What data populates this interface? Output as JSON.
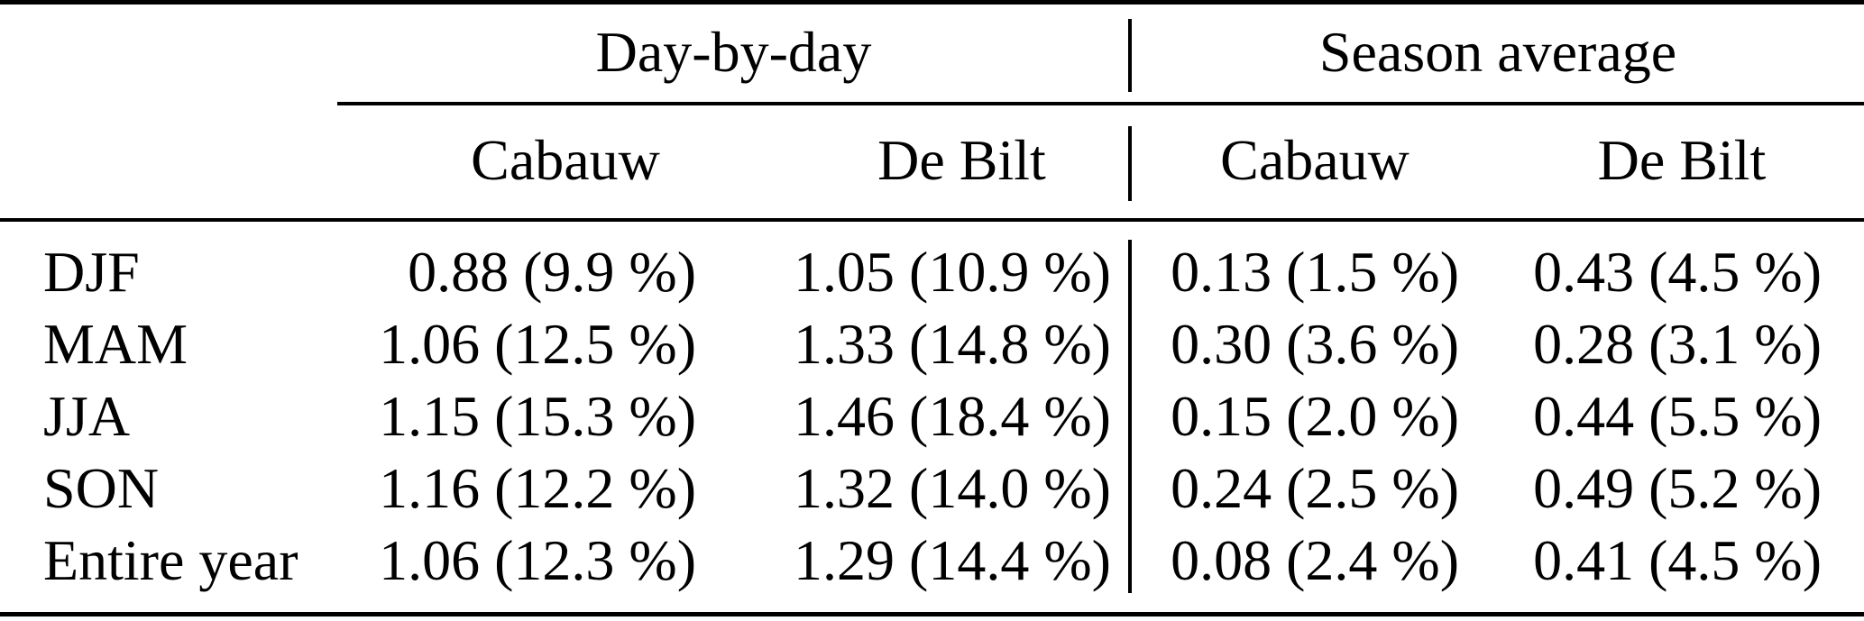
{
  "table": {
    "column_groups": {
      "day_by_day": "Day-by-day",
      "season_average": "Season average"
    },
    "sub_headers": {
      "day_cabauw": "Cabauw",
      "day_debilt": "De Bilt",
      "season_cabauw": "Cabauw",
      "season_debilt": "De Bilt"
    },
    "rows": [
      {
        "label": "DJF",
        "day_cabauw": "0.88 (9.9 %)",
        "day_debilt": "1.05 (10.9 %)",
        "season_cabauw": "0.13 (1.5 %)",
        "season_debilt": "0.43 (4.5 %)"
      },
      {
        "label": "MAM",
        "day_cabauw": "1.06 (12.5 %)",
        "day_debilt": "1.33 (14.8 %)",
        "season_cabauw": "0.30 (3.6 %)",
        "season_debilt": "0.28 (3.1 %)"
      },
      {
        "label": "JJA",
        "day_cabauw": "1.15 (15.3 %)",
        "day_debilt": "1.46 (18.4 %)",
        "season_cabauw": "0.15 (2.0 %)",
        "season_debilt": "0.44 (5.5 %)"
      },
      {
        "label": "SON",
        "day_cabauw": "1.16 (12.2 %)",
        "day_debilt": "1.32 (14.0 %)",
        "season_cabauw": "0.24 (2.5 %)",
        "season_debilt": "0.49 (5.2 %)"
      },
      {
        "label": "Entire year",
        "day_cabauw": "1.06 (12.3 %)",
        "day_debilt": "1.29 (14.4 %)",
        "season_cabauw": "0.08 (2.4 %)",
        "season_debilt": "0.41 (4.5 %)"
      }
    ],
    "colors": {
      "background": "#ffffff",
      "text": "#000000",
      "rule": "#000000"
    }
  },
  "chart_data": {
    "type": "table",
    "title": "",
    "column_group_headers": [
      "Day-by-day",
      "Season average"
    ],
    "columns": [
      "",
      "Day-by-day Cabauw",
      "Day-by-day De Bilt",
      "Season average Cabauw",
      "Season average De Bilt"
    ],
    "rows": [
      [
        "DJF",
        "0.88 (9.9 %)",
        "1.05 (10.9 %)",
        "0.13 (1.5 %)",
        "0.43 (4.5 %)"
      ],
      [
        "MAM",
        "1.06 (12.5 %)",
        "1.33 (14.8 %)",
        "0.30 (3.6 %)",
        "0.28 (3.1 %)"
      ],
      [
        "JJA",
        "1.15 (15.3 %)",
        "1.46 (18.4 %)",
        "0.15 (2.0 %)",
        "0.44 (5.5 %)"
      ],
      [
        "SON",
        "1.16 (12.2 %)",
        "1.32 (14.0 %)",
        "0.24 (2.5 %)",
        "0.49 (5.2 %)"
      ],
      [
        "Entire year",
        "1.06 (12.3 %)",
        "1.29 (14.4 %)",
        "0.08 (2.4 %)",
        "0.41 (4.5 %)"
      ]
    ]
  }
}
